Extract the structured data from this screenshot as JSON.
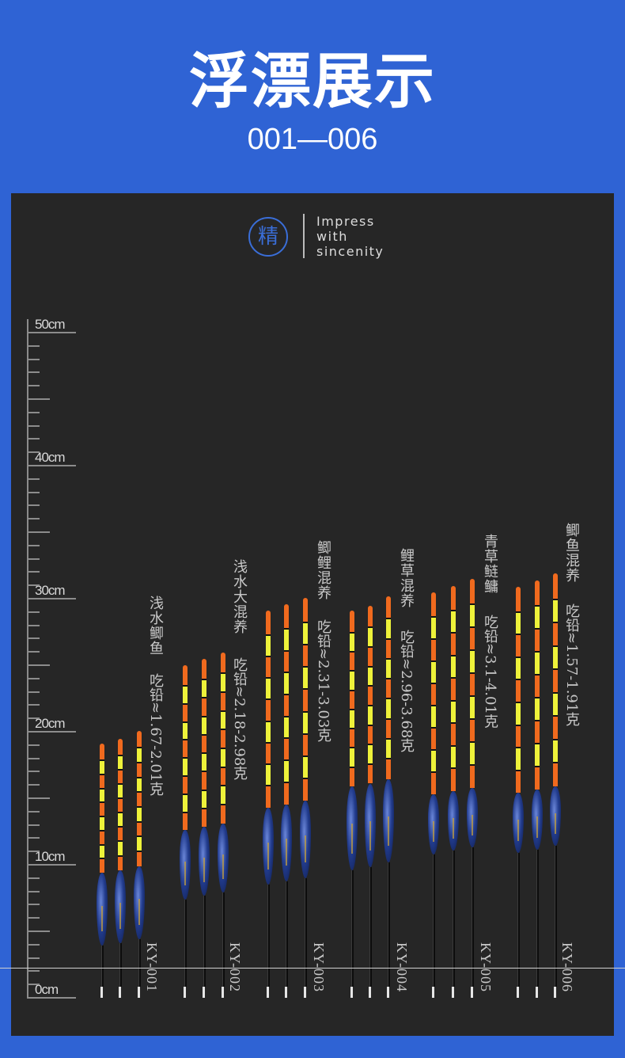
{
  "header": {
    "title": "浮漂展示",
    "subtitle": "001—006"
  },
  "brand": {
    "seal_char": "精",
    "slogan_lines": [
      "Impress",
      "with",
      "sincenity"
    ]
  },
  "colors": {
    "background_blue": "#2f63d4",
    "panel": "#262626",
    "tip_orange": "#f06a1e",
    "tip_yellow": "#eef23a",
    "body_blue": "#233d8f"
  },
  "ruler": {
    "unit": "cm",
    "min": 0,
    "max": 50,
    "labels": [
      "50cm",
      "40cm",
      "30cm",
      "20cm",
      "10cm",
      "0cm"
    ],
    "label_values": [
      50,
      40,
      30,
      20,
      10,
      0
    ]
  },
  "floats": [
    {
      "model": "KY-001",
      "name": "浅水鲫鱼",
      "lead_prefix": "吃铅",
      "lead_range": "≈1.67-2.01克",
      "lengths_cm": [
        18.9,
        19.3,
        19.9
      ],
      "tip_cm": 9.5,
      "body_cm": 5.5
    },
    {
      "model": "KY-002",
      "name": "浅水大混养",
      "lead_prefix": "吃铅",
      "lead_range": "≈2.18-2.98克",
      "lengths_cm": [
        24.8,
        25.3,
        25.8
      ],
      "tip_cm": 12.2,
      "body_cm": 5.2
    },
    {
      "model": "KY-003",
      "name": "鲫鲤混养",
      "lead_prefix": "吃铅",
      "lead_range": "≈2.31-3.03克",
      "lengths_cm": [
        28.9,
        29.4,
        29.9
      ],
      "tip_cm": 14.6,
      "body_cm": 5.8
    },
    {
      "model": "KY-004",
      "name": "鲤草混养",
      "lead_prefix": "吃铅",
      "lead_range": "≈2.96-3.68克",
      "lengths_cm": [
        28.9,
        29.3,
        30.0
      ],
      "tip_cm": 13.0,
      "body_cm": 6.3
    },
    {
      "model": "KY-005",
      "name": "青草鲢鳙",
      "lead_prefix": "吃铅",
      "lead_range": "≈3.1-4.01克",
      "lengths_cm": [
        30.3,
        30.8,
        31.3
      ],
      "tip_cm": 15.0,
      "body_cm": 4.5
    },
    {
      "model": "KY-006",
      "name": "鲫鱼混养",
      "lead_prefix": "吃铅",
      "lead_range": "≈1.57-1.91克",
      "lengths_cm": [
        30.7,
        31.2,
        31.7
      ],
      "tip_cm": 15.3,
      "body_cm": 4.5
    }
  ]
}
